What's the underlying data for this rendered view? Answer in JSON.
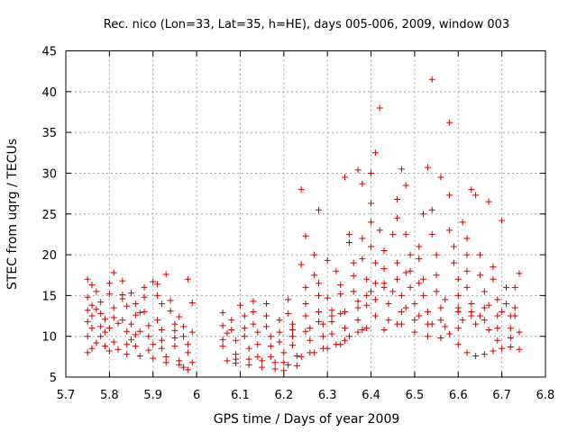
{
  "chart_data": {
    "type": "scatter",
    "title": "Rec. nico (Lon=33, Lat=35, h=HE), days 005-006, 2009, window 003",
    "xlabel": "GPS time / Days of year 2009",
    "ylabel": "STEC from uqrg / TECUs",
    "xlim": [
      5.7,
      6.8
    ],
    "ylim": [
      5,
      45
    ],
    "xticks": [
      "5.7",
      "5.8",
      "5.9",
      "6",
      "6.1",
      "6.2",
      "6.3",
      "6.4",
      "6.5",
      "6.6",
      "6.7",
      "6.8"
    ],
    "yticks": [
      "5",
      "10",
      "15",
      "20",
      "25",
      "30",
      "35",
      "40",
      "45"
    ],
    "grid": true,
    "marker": "+",
    "color": "#cc0000",
    "series": [
      {
        "points": [
          [
            5.75,
            17.0
          ],
          [
            5.76,
            16.3
          ],
          [
            5.75,
            14.8
          ],
          [
            5.76,
            13.8
          ],
          [
            5.75,
            13.2
          ],
          [
            5.76,
            12.5
          ],
          [
            5.75,
            11.8
          ],
          [
            5.76,
            11.0
          ],
          [
            5.75,
            10.0
          ],
          [
            5.77,
            9.2
          ],
          [
            5.76,
            8.5
          ],
          [
            5.75,
            8.0
          ],
          [
            5.77,
            15.5
          ],
          [
            5.78,
            14.2
          ],
          [
            5.78,
            12.8
          ],
          [
            5.78,
            11.2
          ],
          [
            5.78,
            10.0
          ],
          [
            5.79,
            8.8
          ],
          [
            5.8,
            8.2
          ],
          [
            5.8,
            16.5
          ],
          [
            5.8,
            15.2
          ],
          [
            5.81,
            13.5
          ],
          [
            5.81,
            12.3
          ],
          [
            5.8,
            11.0
          ],
          [
            5.81,
            9.3
          ],
          [
            5.82,
            8.4
          ],
          [
            5.81,
            17.8
          ],
          [
            5.83,
            16.8
          ],
          [
            5.83,
            14.6
          ],
          [
            5.83,
            12.0
          ],
          [
            5.84,
            10.6
          ],
          [
            5.84,
            9.0
          ],
          [
            5.84,
            7.8
          ],
          [
            5.85,
            15.3
          ],
          [
            5.86,
            14.0
          ],
          [
            5.86,
            12.6
          ],
          [
            5.85,
            11.5
          ],
          [
            5.86,
            10.2
          ],
          [
            5.86,
            8.8
          ],
          [
            5.87,
            7.6
          ],
          [
            5.88,
            16.0
          ],
          [
            5.88,
            14.8
          ],
          [
            5.88,
            13.0
          ],
          [
            5.89,
            11.3
          ],
          [
            5.89,
            10.0
          ],
          [
            5.89,
            8.3
          ],
          [
            5.9,
            7.3
          ],
          [
            5.9,
            16.7
          ],
          [
            5.91,
            15.0
          ],
          [
            5.91,
            12.0
          ],
          [
            5.92,
            10.8
          ],
          [
            5.92,
            9.5
          ],
          [
            5.92,
            8.5
          ],
          [
            5.93,
            7.5
          ],
          [
            5.93,
            17.6
          ],
          [
            5.94,
            14.4
          ],
          [
            5.94,
            13.1
          ],
          [
            5.95,
            11.5
          ],
          [
            5.95,
            9.8
          ],
          [
            5.95,
            8.8
          ],
          [
            5.96,
            7.0
          ],
          [
            5.96,
            12.4
          ],
          [
            5.97,
            11.2
          ],
          [
            5.97,
            10.0
          ],
          [
            5.98,
            9.0
          ],
          [
            5.98,
            8.0
          ],
          [
            5.97,
            6.2
          ],
          [
            5.98,
            5.9
          ],
          [
            5.98,
            17.0
          ],
          [
            5.99,
            14.1
          ],
          [
            5.99,
            10.5
          ],
          [
            5.99,
            6.8
          ],
          [
            5.77,
            13.3
          ],
          [
            5.79,
            12.1
          ],
          [
            5.82,
            11.6
          ],
          [
            5.85,
            9.6
          ],
          [
            5.87,
            10.6
          ],
          [
            5.9,
            9.0
          ],
          [
            5.93,
            6.8
          ],
          [
            5.96,
            6.5
          ],
          [
            5.91,
            16.4
          ],
          [
            5.83,
            15.1
          ],
          [
            5.79,
            10.5
          ],
          [
            5.84,
            13.7
          ],
          [
            5.87,
            12.9
          ],
          [
            5.92,
            14.0
          ],
          [
            5.95,
            10.7
          ],
          [
            6.06,
            12.9
          ],
          [
            6.06,
            11.3
          ],
          [
            6.06,
            9.6
          ],
          [
            6.06,
            8.8
          ],
          [
            6.07,
            10.4
          ],
          [
            6.07,
            7.0
          ],
          [
            6.08,
            12.0
          ],
          [
            6.08,
            10.8
          ],
          [
            6.09,
            9.5
          ],
          [
            6.09,
            7.8
          ],
          [
            6.09,
            6.7
          ],
          [
            6.1,
            13.8
          ],
          [
            6.11,
            12.5
          ],
          [
            6.11,
            11.0
          ],
          [
            6.11,
            10.0
          ],
          [
            6.12,
            8.5
          ],
          [
            6.12,
            7.2
          ],
          [
            6.13,
            14.3
          ],
          [
            6.13,
            13.0
          ],
          [
            6.13,
            11.5
          ],
          [
            6.14,
            10.5
          ],
          [
            6.14,
            9.0
          ],
          [
            6.14,
            7.5
          ],
          [
            6.15,
            6.2
          ],
          [
            6.16,
            14.0
          ],
          [
            6.16,
            12.5
          ],
          [
            6.16,
            11.2
          ],
          [
            6.17,
            10.0
          ],
          [
            6.17,
            8.8
          ],
          [
            6.17,
            7.5
          ],
          [
            6.18,
            6.0
          ],
          [
            6.19,
            12.0
          ],
          [
            6.19,
            10.5
          ],
          [
            6.19,
            9.3
          ],
          [
            6.2,
            8.0
          ],
          [
            6.2,
            6.8
          ],
          [
            6.2,
            5.8
          ],
          [
            6.21,
            14.5
          ],
          [
            6.21,
            12.8
          ],
          [
            6.22,
            11.5
          ],
          [
            6.22,
            10.0
          ],
          [
            6.22,
            8.9
          ],
          [
            6.23,
            7.6
          ],
          [
            6.23,
            6.4
          ],
          [
            6.24,
            28.0
          ],
          [
            6.24,
            18.8
          ],
          [
            6.25,
            16.0
          ],
          [
            6.25,
            14.0
          ],
          [
            6.25,
            12.5
          ],
          [
            6.26,
            11.0
          ],
          [
            6.26,
            9.5
          ],
          [
            6.26,
            8.0
          ],
          [
            6.25,
            22.3
          ],
          [
            6.27,
            20.0
          ],
          [
            6.27,
            17.5
          ],
          [
            6.28,
            25.5
          ],
          [
            6.28,
            16.5
          ],
          [
            6.28,
            15.0
          ],
          [
            6.28,
            13.0
          ],
          [
            6.29,
            11.5
          ],
          [
            6.29,
            10.0
          ],
          [
            6.29,
            8.5
          ],
          [
            6.3,
            19.3
          ],
          [
            6.3,
            14.7
          ],
          [
            6.31,
            13.2
          ],
          [
            6.31,
            11.8
          ],
          [
            6.31,
            10.3
          ],
          [
            6.32,
            9.0
          ],
          [
            6.32,
            18.0
          ],
          [
            6.33,
            16.3
          ],
          [
            6.33,
            15.2
          ],
          [
            6.33,
            12.8
          ],
          [
            6.34,
            11.0
          ],
          [
            6.34,
            9.5
          ],
          [
            6.34,
            29.5
          ],
          [
            6.35,
            22.5
          ],
          [
            6.35,
            21.5
          ],
          [
            6.36,
            19.0
          ],
          [
            6.36,
            17.4
          ],
          [
            6.36,
            15.5
          ],
          [
            6.37,
            13.5
          ],
          [
            6.37,
            12.0
          ],
          [
            6.37,
            10.5
          ],
          [
            6.37,
            30.4
          ],
          [
            6.38,
            28.7
          ],
          [
            6.38,
            22.0
          ],
          [
            6.38,
            19.5
          ],
          [
            6.39,
            17.0
          ],
          [
            6.39,
            15.0
          ],
          [
            6.39,
            13.8
          ],
          [
            6.39,
            11.0
          ],
          [
            6.4,
            26.3
          ],
          [
            6.4,
            24.0
          ],
          [
            6.4,
            21.0
          ],
          [
            6.41,
            19.0
          ],
          [
            6.41,
            16.5
          ],
          [
            6.41,
            14.5
          ],
          [
            6.41,
            12.5
          ],
          [
            6.41,
            32.5
          ],
          [
            6.4,
            30.0
          ],
          [
            6.42,
            38.0
          ],
          [
            6.42,
            23.0
          ],
          [
            6.43,
            20.5
          ],
          [
            6.43,
            18.3
          ],
          [
            6.43,
            16.0
          ],
          [
            6.44,
            14.0
          ],
          [
            6.44,
            12.0
          ],
          [
            6.45,
            22.5
          ],
          [
            6.46,
            26.8
          ],
          [
            6.46,
            24.5
          ],
          [
            6.46,
            19.0
          ],
          [
            6.46,
            17.0
          ],
          [
            6.47,
            15.0
          ],
          [
            6.47,
            13.0
          ],
          [
            6.47,
            11.5
          ],
          [
            6.47,
            30.5
          ],
          [
            6.48,
            28.5
          ],
          [
            6.48,
            22.5
          ],
          [
            6.49,
            20.0
          ],
          [
            6.49,
            18.0
          ],
          [
            6.49,
            16.0
          ],
          [
            6.5,
            14.0
          ],
          [
            6.5,
            12.0
          ],
          [
            6.51,
            21.0
          ],
          [
            6.51,
            19.5
          ],
          [
            6.52,
            25.0
          ],
          [
            6.52,
            17.0
          ],
          [
            6.52,
            15.0
          ],
          [
            6.53,
            13.0
          ],
          [
            6.53,
            11.5
          ],
          [
            6.53,
            30.7
          ],
          [
            6.54,
            41.5
          ],
          [
            6.54,
            25.5
          ],
          [
            6.54,
            22.5
          ],
          [
            6.55,
            20.0
          ],
          [
            6.55,
            17.5
          ],
          [
            6.55,
            15.5
          ],
          [
            6.56,
            13.5
          ],
          [
            6.56,
            12.0
          ],
          [
            6.56,
            29.5
          ],
          [
            6.58,
            36.2
          ],
          [
            6.58,
            27.3
          ],
          [
            6.58,
            23.0
          ],
          [
            6.59,
            21.0
          ],
          [
            6.59,
            19.0
          ],
          [
            6.6,
            17.0
          ],
          [
            6.6,
            15.0
          ],
          [
            6.6,
            13.0
          ],
          [
            6.6,
            11.0
          ],
          [
            6.61,
            24.0
          ],
          [
            6.62,
            22.0
          ],
          [
            6.62,
            20.0
          ],
          [
            6.62,
            18.0
          ],
          [
            6.62,
            16.0
          ],
          [
            6.63,
            14.0
          ],
          [
            6.63,
            12.5
          ],
          [
            6.63,
            28.0
          ],
          [
            6.64,
            27.3
          ],
          [
            6.65,
            20.0
          ],
          [
            6.65,
            17.5
          ],
          [
            6.66,
            15.5
          ],
          [
            6.66,
            13.5
          ],
          [
            6.66,
            12.0
          ],
          [
            6.67,
            26.5
          ],
          [
            6.68,
            18.5
          ],
          [
            6.68,
            17.0
          ],
          [
            6.69,
            14.5
          ],
          [
            6.69,
            12.5
          ],
          [
            6.69,
            11.0
          ],
          [
            6.7,
            24.2
          ],
          [
            6.71,
            16.0
          ],
          [
            6.71,
            14.0
          ],
          [
            6.72,
            12.5
          ],
          [
            6.72,
            11.0
          ],
          [
            6.73,
            16.0
          ],
          [
            6.73,
            12.5
          ],
          [
            6.74,
            17.7
          ],
          [
            6.74,
            10.5
          ],
          [
            6.43,
            10.8
          ],
          [
            6.46,
            11.5
          ],
          [
            6.5,
            10.5
          ],
          [
            6.53,
            10.0
          ],
          [
            6.56,
            9.8
          ],
          [
            6.58,
            10.3
          ],
          [
            6.6,
            9.0
          ],
          [
            6.62,
            8.0
          ],
          [
            6.64,
            7.6
          ],
          [
            6.66,
            7.8
          ],
          [
            6.68,
            8.2
          ],
          [
            6.7,
            8.5
          ],
          [
            6.72,
            8.7
          ],
          [
            6.74,
            8.4
          ],
          [
            6.38,
            10.8
          ],
          [
            6.35,
            10.0
          ],
          [
            6.33,
            9.0
          ],
          [
            6.3,
            8.5
          ],
          [
            6.27,
            8.0
          ],
          [
            6.24,
            7.5
          ],
          [
            6.21,
            6.5
          ],
          [
            6.18,
            6.8
          ],
          [
            6.15,
            7.0
          ],
          [
            6.12,
            6.5
          ],
          [
            6.09,
            7.2
          ],
          [
            6.45,
            15.5
          ],
          [
            6.48,
            13.5
          ],
          [
            6.51,
            12.5
          ],
          [
            6.54,
            11.5
          ],
          [
            6.57,
            11.2
          ],
          [
            6.61,
            12.0
          ],
          [
            6.64,
            11.5
          ],
          [
            6.67,
            10.8
          ],
          [
            6.69,
            9.5
          ],
          [
            6.72,
            9.8
          ],
          [
            6.22,
            10.8
          ],
          [
            6.25,
            10.6
          ],
          [
            6.28,
            11.8
          ],
          [
            6.31,
            12.5
          ],
          [
            6.34,
            13.0
          ],
          [
            6.37,
            14.3
          ],
          [
            6.4,
            15.5
          ],
          [
            6.43,
            16.5
          ],
          [
            6.48,
            17.8
          ],
          [
            6.51,
            16.5
          ],
          [
            6.57,
            14.5
          ],
          [
            6.6,
            13.5
          ],
          [
            6.63,
            13.0
          ],
          [
            6.65,
            12.5
          ],
          [
            6.67,
            13.8
          ],
          [
            6.7,
            13.0
          ],
          [
            6.73,
            13.5
          ]
        ]
      }
    ]
  }
}
